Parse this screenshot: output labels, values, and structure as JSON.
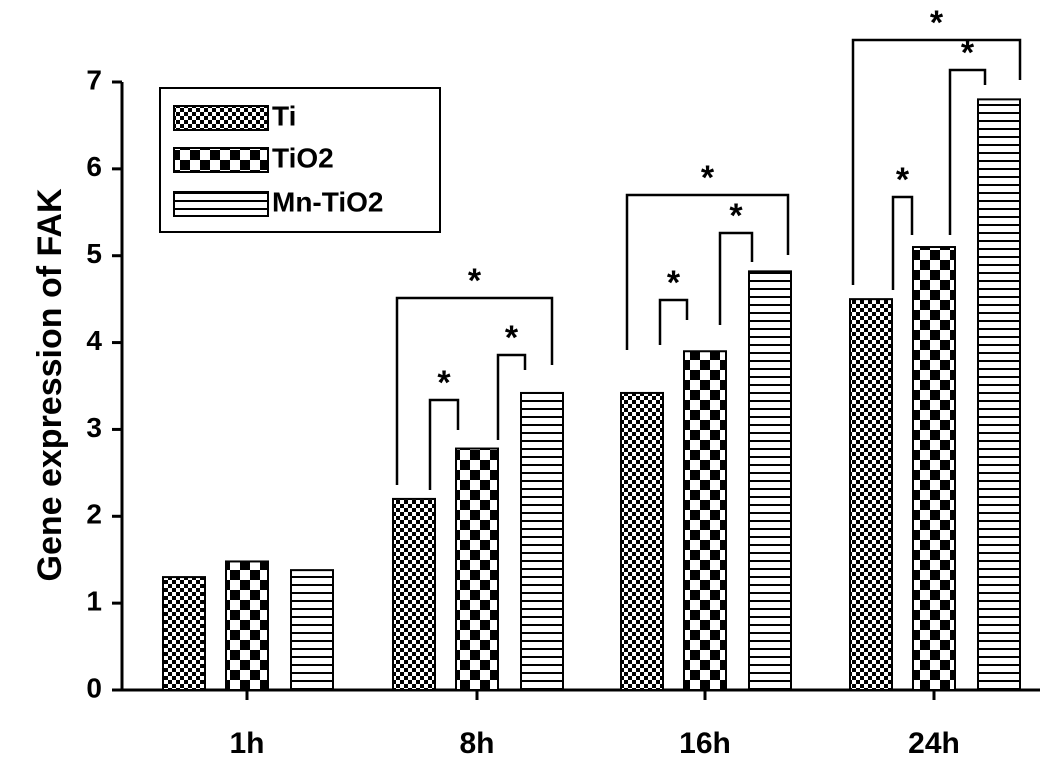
{
  "chart_data": {
    "type": "bar",
    "y_label": "Gene expression of FAK",
    "categories": [
      "1h",
      "8h",
      "16h",
      "24h"
    ],
    "series": [
      {
        "name": "Ti",
        "color": "#000000",
        "pattern": "fine-checker",
        "values": [
          1.3,
          2.2,
          3.42,
          4.5
        ]
      },
      {
        "name": "TiO2",
        "color": "#000000",
        "pattern": "coarse-checker",
        "values": [
          1.48,
          2.78,
          3.9,
          5.1
        ]
      },
      {
        "name": "Mn-TiO2",
        "color": "#000000",
        "pattern": "horizontal-stripes",
        "values": [
          1.38,
          3.42,
          4.82,
          6.8
        ]
      }
    ],
    "annotations": [
      "*",
      "*",
      "*",
      "*",
      "*",
      "*",
      "*",
      "*",
      "*"
    ],
    "ylim": [
      0,
      7
    ],
    "yticks": [
      0,
      1,
      2,
      3,
      4,
      5,
      6,
      7
    ],
    "grid": false,
    "legend": "upper left"
  }
}
